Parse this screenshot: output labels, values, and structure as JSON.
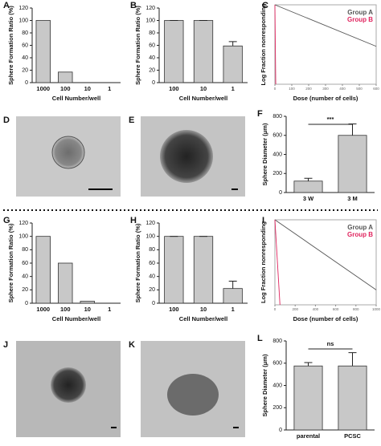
{
  "chart_data": [
    {
      "panel": "A",
      "type": "bar",
      "categories": [
        "1000",
        "100",
        "10",
        "1"
      ],
      "values": [
        100,
        17,
        0,
        0
      ],
      "color": "#c8c8c8",
      "ylim": [
        0,
        120
      ],
      "yticks": [
        0,
        20,
        40,
        60,
        80,
        100,
        120
      ],
      "ylabel": "Sphere Formation Ratio (%)",
      "xlabel": "Cell Number/well"
    },
    {
      "panel": "B",
      "type": "bar",
      "categories": [
        "100",
        "10",
        "1"
      ],
      "values": [
        100,
        100,
        59
      ],
      "errors": [
        0,
        0,
        7
      ],
      "color": "#c8c8c8",
      "ylim": [
        0,
        120
      ],
      "yticks": [
        0,
        20,
        40,
        60,
        80,
        100,
        120
      ],
      "ylabel": "Sphere Formation Ratio (%)",
      "xlabel": "Cell Number/well"
    },
    {
      "panel": "C",
      "type": "line",
      "ylabel": "Log Fraction nonresponding",
      "xlabel": "Dose (number of cells)",
      "log_y": true,
      "ylim": [
        0.1,
        1
      ],
      "xlim": [
        0,
        600
      ],
      "xticks": [
        0,
        100,
        200,
        300,
        400,
        500,
        600
      ],
      "series": [
        {
          "name": "Group A",
          "color": "#555555",
          "x": [
            0,
            600
          ],
          "values": [
            1,
            0.3
          ]
        },
        {
          "name": "Group B",
          "color": "#e0245e",
          "x": [
            0,
            5
          ],
          "values": [
            1,
            0.1
          ]
        }
      ]
    },
    {
      "panel": "F",
      "type": "bar",
      "categories": [
        "3 W",
        "3 M"
      ],
      "values": [
        120,
        600
      ],
      "errors": [
        30,
        120
      ],
      "color": "#c8c8c8",
      "ylim": [
        0,
        800
      ],
      "yticks": [
        0,
        200,
        400,
        600,
        800
      ],
      "ylabel": "Sphere Diameter (μm)",
      "annotation": "***"
    },
    {
      "panel": "G",
      "type": "bar",
      "categories": [
        "1000",
        "100",
        "10",
        "1"
      ],
      "values": [
        100,
        60,
        3,
        0
      ],
      "color": "#c8c8c8",
      "ylim": [
        0,
        120
      ],
      "yticks": [
        0,
        20,
        40,
        60,
        80,
        100,
        120
      ],
      "ylabel": "Sphere Formation Ratio (%)",
      "xlabel": "Cell Number/well"
    },
    {
      "panel": "H",
      "type": "bar",
      "categories": [
        "100",
        "10",
        "1"
      ],
      "values": [
        100,
        100,
        22
      ],
      "errors": [
        0,
        0,
        11
      ],
      "color": "#c8c8c8",
      "ylim": [
        0,
        120
      ],
      "yticks": [
        0,
        20,
        40,
        60,
        80,
        100,
        120
      ],
      "ylabel": "Sphere Formation Ratio (%)",
      "xlabel": "Cell Number/well"
    },
    {
      "panel": "I",
      "type": "line",
      "ylabel": "Log Fraction nonresponding",
      "xlabel": "Dose (number of cells)",
      "log_y": true,
      "ylim": [
        0.1,
        1
      ],
      "xlim": [
        0,
        1000
      ],
      "xticks": [
        0,
        200,
        400,
        600,
        800,
        1000
      ],
      "series": [
        {
          "name": "Group A",
          "color": "#555555",
          "x": [
            0,
            1000
          ],
          "values": [
            1,
            0.15
          ]
        },
        {
          "name": "Group B",
          "color": "#e0245e",
          "x": [
            0,
            50
          ],
          "values": [
            1,
            0.1
          ]
        }
      ]
    },
    {
      "panel": "L",
      "type": "bar",
      "categories": [
        "parental",
        "PCSC"
      ],
      "values": [
        575,
        575
      ],
      "errors": [
        30,
        120
      ],
      "color": "#c8c8c8",
      "ylim": [
        0,
        800
      ],
      "yticks": [
        0,
        200,
        400,
        600,
        800
      ],
      "ylabel": "Sphere Diameter (μm)",
      "annotation": "ns"
    }
  ],
  "images": [
    {
      "panel": "D"
    },
    {
      "panel": "E"
    },
    {
      "panel": "J"
    },
    {
      "panel": "K"
    }
  ]
}
